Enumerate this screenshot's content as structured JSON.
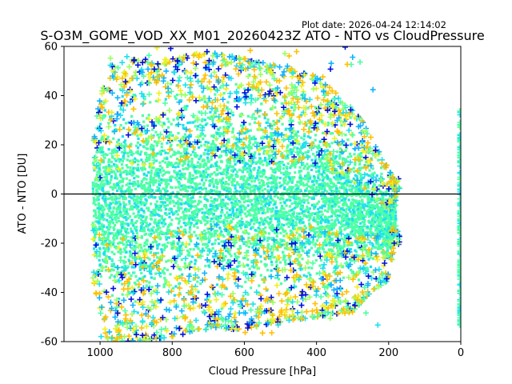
{
  "chart_data": {
    "type": "scatter",
    "title": "S-O3M_GOME_VOD_XX_M01_20260423Z ATO - NTO vs CloudPressure",
    "plot_date": "Plot date: 2026-04-24 12:14:02",
    "xlabel": "Cloud Pressure [hPa]",
    "ylabel": "ATO - NTO [DU]",
    "xlim": [
      1100,
      0
    ],
    "ylim": [
      -60,
      60
    ],
    "x_ticks": [
      1000,
      800,
      600,
      400,
      200,
      0
    ],
    "y_ticks": [
      -60,
      -40,
      -20,
      0,
      20,
      40,
      60
    ],
    "reference_line_y": 0,
    "marker": "+",
    "grid": false,
    "colors": {
      "dense_core": "#4dffa6",
      "cyan": "#1ee0f0",
      "sky": "#10b4ff",
      "blue": "#0010e0",
      "yellow": "#f0f020",
      "orange": "#ffc000",
      "lime": "#9aff60",
      "reference_line": "#000000"
    },
    "series_envelope": [
      {
        "x": 1020,
        "y_low": -35,
        "y_high": 25
      },
      {
        "x": 980,
        "y_low": -60,
        "y_high": 52
      },
      {
        "x": 900,
        "y_low": -60,
        "y_high": 55
      },
      {
        "x": 800,
        "y_low": -58,
        "y_high": 55
      },
      {
        "x": 700,
        "y_low": -55,
        "y_high": 58
      },
      {
        "x": 600,
        "y_low": -55,
        "y_high": 55
      },
      {
        "x": 500,
        "y_low": -52,
        "y_high": 52
      },
      {
        "x": 400,
        "y_low": -50,
        "y_high": 48
      },
      {
        "x": 300,
        "y_low": -48,
        "y_high": 35
      },
      {
        "x": 250,
        "y_low": -40,
        "y_high": 25
      },
      {
        "x": 200,
        "y_low": -35,
        "y_high": 10
      },
      {
        "x": 180,
        "y_low": -20,
        "y_high": 5
      },
      {
        "x": 0,
        "y_low": -55,
        "y_high": 35
      }
    ]
  }
}
